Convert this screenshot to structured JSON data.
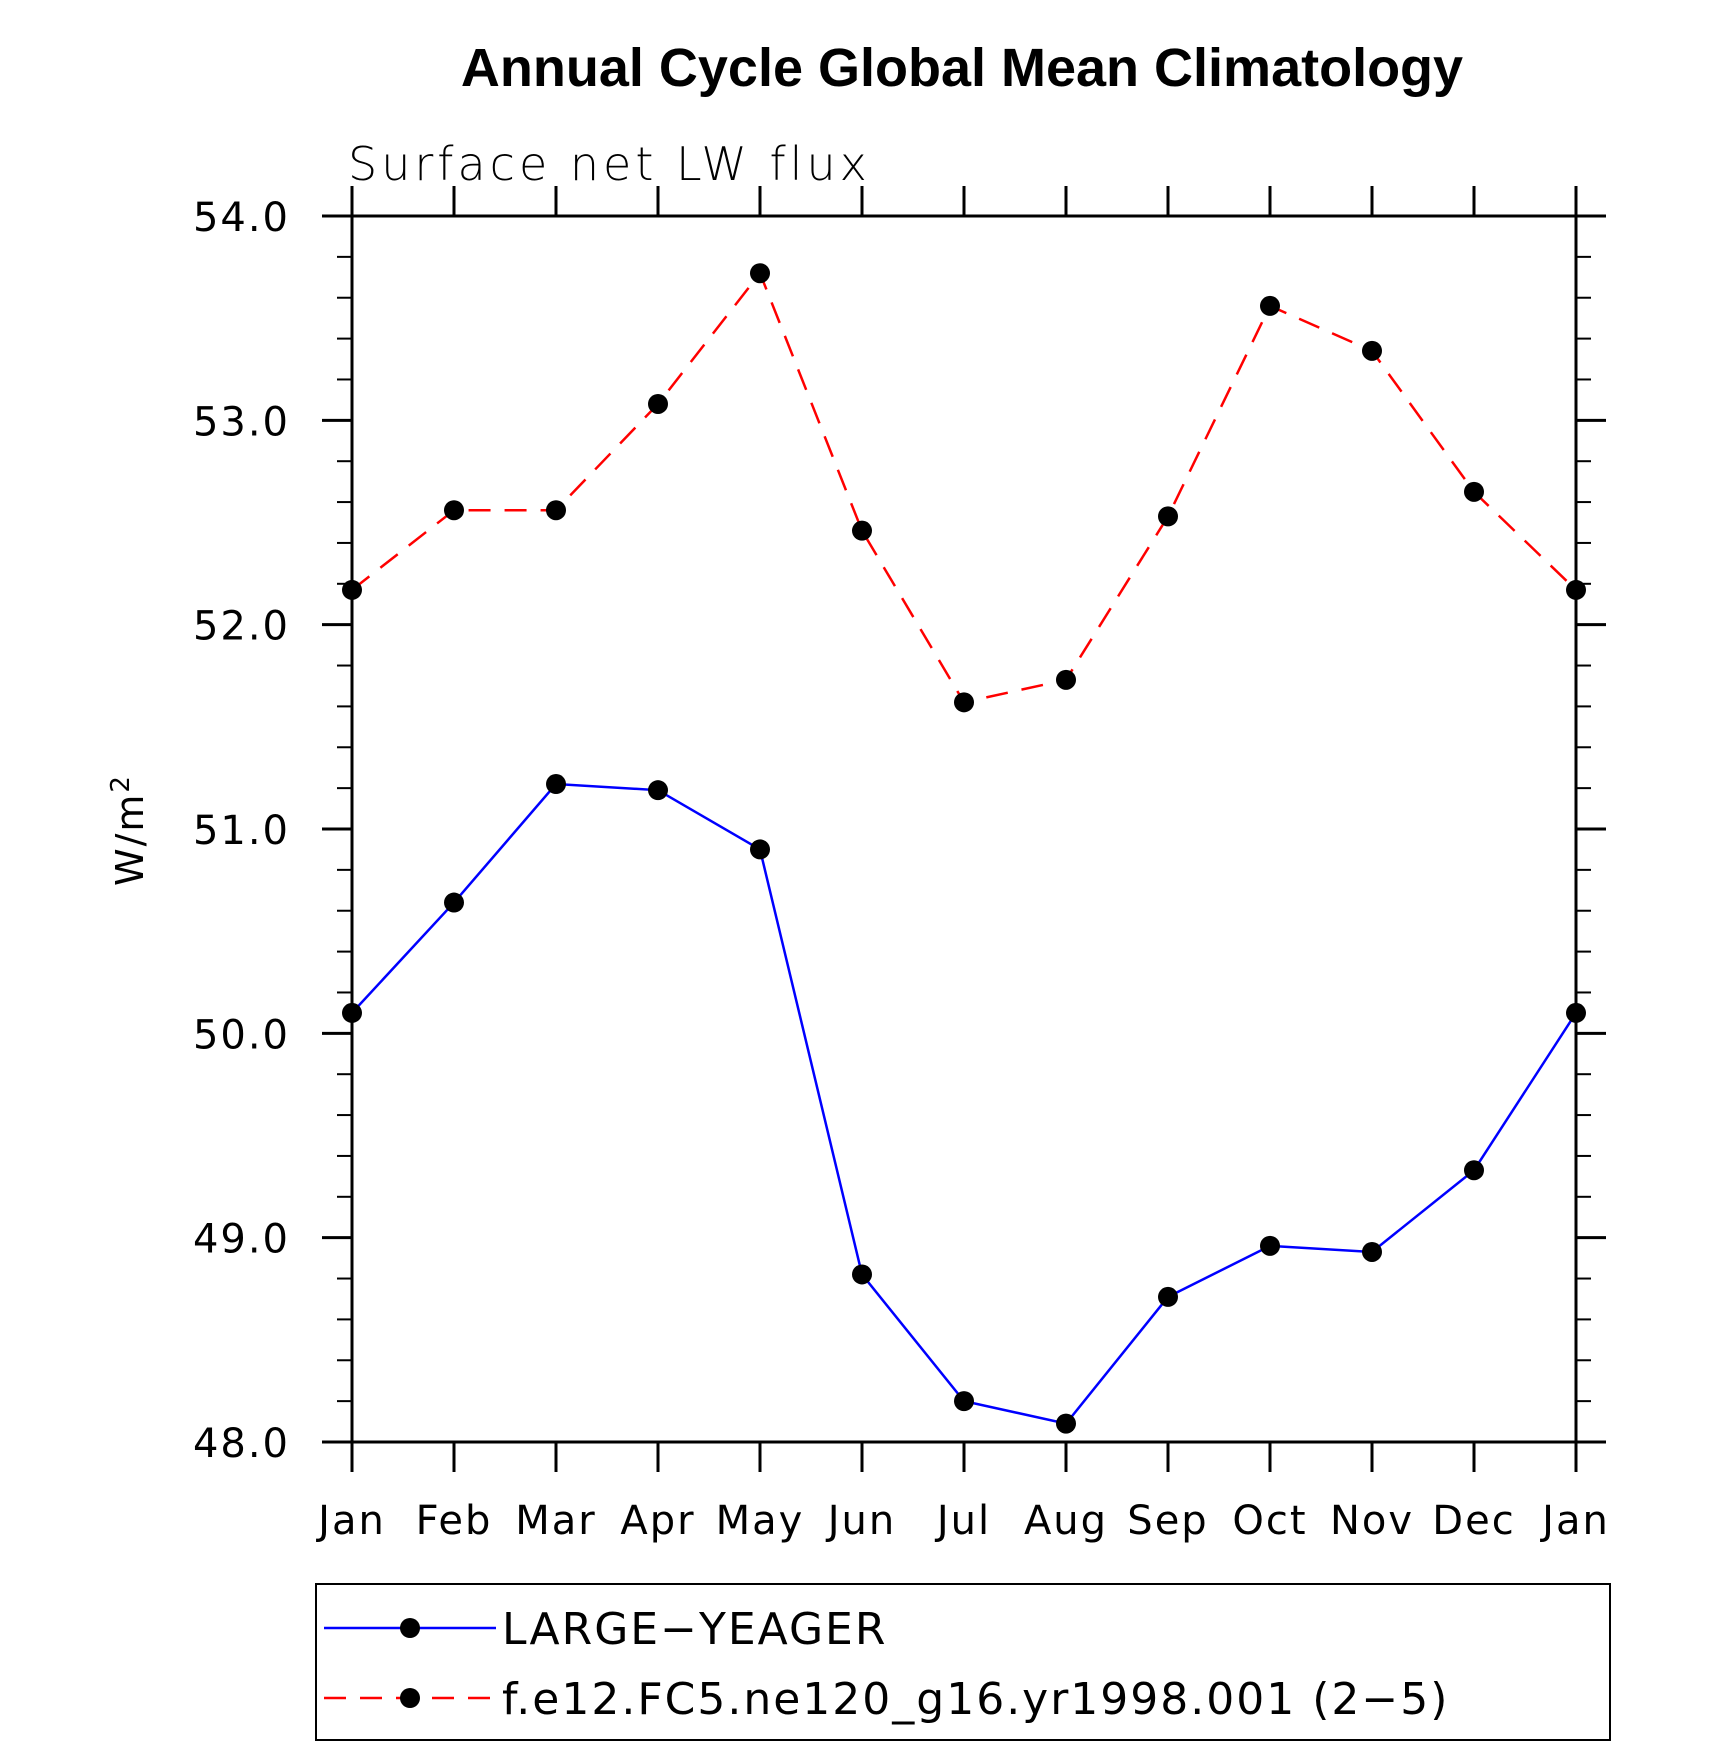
{
  "chart_data": {
    "type": "line",
    "title": "Annual Cycle Global Mean Climatology",
    "subtitle": "Surface net LW flux",
    "ylabel": "W/m",
    "ylabel_superscript": "2",
    "xlabel": "",
    "categories": [
      "Jan",
      "Feb",
      "Mar",
      "Apr",
      "May",
      "Jun",
      "Jul",
      "Aug",
      "Sep",
      "Oct",
      "Nov",
      "Dec",
      "Jan"
    ],
    "ylim": [
      48.0,
      54.0
    ],
    "yticks": [
      "48.0",
      "49.0",
      "50.0",
      "51.0",
      "52.0",
      "53.0",
      "54.0"
    ],
    "grid": false,
    "legend_placement": "bottom",
    "series": [
      {
        "name": "LARGE−YEAGER",
        "color": "#0000ff",
        "line_style": "solid",
        "marker": "filled-circle",
        "values": [
          50.1,
          50.64,
          51.22,
          51.19,
          50.9,
          48.82,
          48.2,
          48.09,
          48.71,
          48.96,
          48.93,
          49.33,
          50.1
        ]
      },
      {
        "name": "f.e12.FC5.ne120_g16.yr1998.001 (2−5)",
        "color": "#ff0000",
        "line_style": "dashed",
        "marker": "filled-circle",
        "values": [
          52.17,
          52.56,
          52.56,
          53.08,
          53.72,
          52.46,
          51.62,
          51.73,
          52.53,
          53.56,
          53.34,
          52.65,
          52.17
        ]
      }
    ]
  }
}
